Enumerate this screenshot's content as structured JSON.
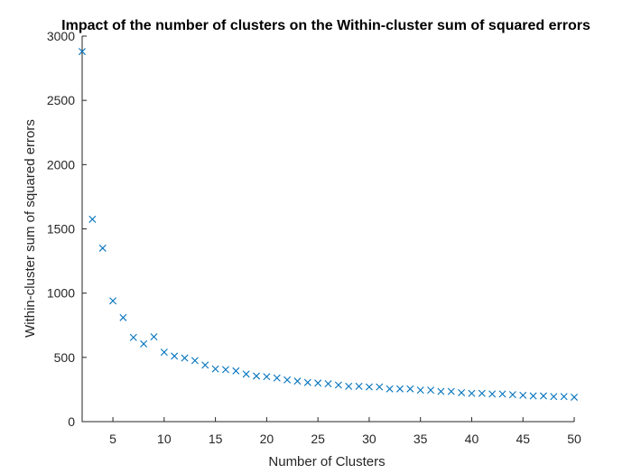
{
  "chart_data": {
    "type": "scatter",
    "title": "Impact of the number of clusters on the Within-cluster sum of squared errors",
    "xlabel": "Number of Clusters",
    "ylabel": "Within-cluster sum of squared errors",
    "xlim": [
      2,
      50
    ],
    "ylim": [
      0,
      3000
    ],
    "xticks": [
      5,
      10,
      15,
      20,
      25,
      30,
      35,
      40,
      45,
      50
    ],
    "yticks": [
      0,
      500,
      1000,
      1500,
      2000,
      2500,
      3000
    ],
    "grid": false,
    "marker": "x",
    "color": "#0072BD",
    "x": [
      2,
      3,
      4,
      5,
      6,
      7,
      8,
      9,
      10,
      11,
      12,
      13,
      14,
      15,
      16,
      17,
      18,
      19,
      20,
      21,
      22,
      23,
      24,
      25,
      26,
      27,
      28,
      29,
      30,
      31,
      32,
      33,
      34,
      35,
      36,
      37,
      38,
      39,
      40,
      41,
      42,
      43,
      44,
      45,
      46,
      47,
      48,
      49,
      50
    ],
    "y": [
      2880,
      1575,
      1350,
      940,
      810,
      655,
      605,
      660,
      540,
      510,
      495,
      475,
      440,
      410,
      405,
      395,
      370,
      355,
      350,
      340,
      325,
      315,
      305,
      300,
      295,
      285,
      275,
      275,
      270,
      270,
      255,
      255,
      255,
      245,
      245,
      235,
      235,
      225,
      220,
      220,
      215,
      215,
      210,
      205,
      200,
      200,
      195,
      195,
      190
    ]
  }
}
